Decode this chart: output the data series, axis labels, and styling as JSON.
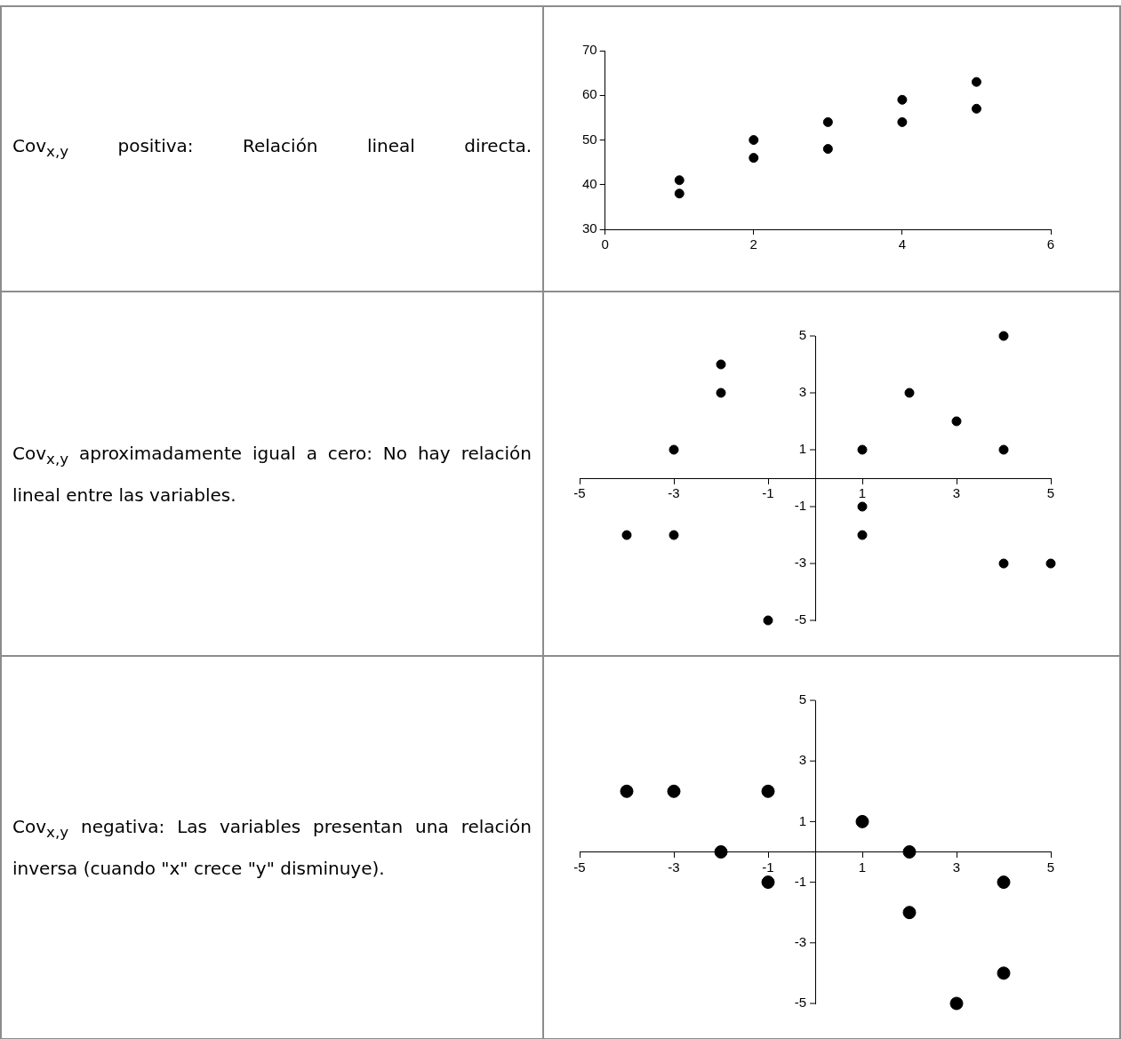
{
  "chart_data": [
    {
      "type": "scatter",
      "title": "Cov$_{x,y}$ positiva: Relación lineal directa.",
      "x": [
        1,
        1,
        2,
        2,
        3,
        3,
        4,
        4,
        5,
        5
      ],
      "values": [
        41,
        38,
        50,
        46,
        54,
        48,
        59,
        54,
        63,
        57
      ],
      "color": "#000000",
      "marker": "circle",
      "xlim": [
        0,
        6
      ],
      "xticks": [
        0,
        2,
        4,
        6
      ],
      "ylim": [
        30,
        70
      ],
      "yticks": [
        30,
        40,
        50,
        60,
        70
      ],
      "grid": false,
      "legend": false
    },
    {
      "type": "scatter",
      "title": "Cov$_{x,y}$ aproximadamente igual a cero: No hay relación lineal entre las variables.",
      "x": [
        -4,
        -3,
        -3,
        -2,
        -2,
        -1,
        1,
        1,
        1,
        2,
        3,
        4,
        4,
        4,
        5
      ],
      "values": [
        -2,
        1,
        -2,
        4,
        3,
        -5,
        1,
        -1,
        -2,
        3,
        2,
        5,
        1,
        -3,
        -3
      ],
      "color": "#000000",
      "marker": "circle",
      "xlim": [
        -5,
        5
      ],
      "xticks": [
        -5,
        -3,
        -1,
        1,
        3,
        5
      ],
      "ylim": [
        -5,
        5
      ],
      "yticks": [
        -5,
        -3,
        -1,
        1,
        3,
        5
      ],
      "grid": false,
      "legend": false
    },
    {
      "type": "scatter",
      "title": "Cov$_{x,y}$ negativa: Las variables presentan una relación inversa (cuando \"x\" crece \"y\" disminuye).",
      "x": [
        -4,
        -3,
        -2,
        -1,
        -1,
        1,
        2,
        2,
        3,
        4,
        4
      ],
      "values": [
        2,
        2,
        0,
        2,
        -1,
        1,
        0,
        -2,
        -5,
        -1,
        -4
      ],
      "color": "#000000",
      "marker": "circle",
      "xlim": [
        -5,
        5
      ],
      "xticks": [
        -5,
        -3,
        -1,
        1,
        3,
        5
      ],
      "ylim": [
        -5,
        5
      ],
      "yticks": [
        -5,
        -3,
        -1,
        1,
        3,
        5
      ],
      "grid": false,
      "legend": false
    }
  ]
}
